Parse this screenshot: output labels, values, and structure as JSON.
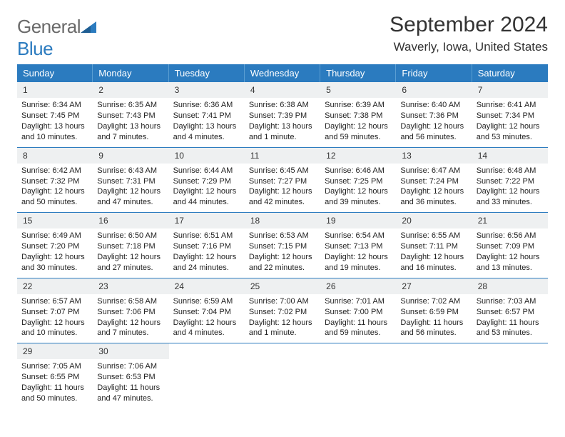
{
  "brand": {
    "name_a": "General",
    "name_b": "Blue"
  },
  "header": {
    "title": "September 2024",
    "location": "Waverly, Iowa, United States"
  },
  "colors": {
    "accent": "#2b7bbf",
    "dow_border": "#5a9ed2",
    "daynum_bg": "#eef0f1",
    "text": "#222222",
    "muted": "#6a6a6a",
    "bg": "#ffffff"
  },
  "dows": [
    "Sunday",
    "Monday",
    "Tuesday",
    "Wednesday",
    "Thursday",
    "Friday",
    "Saturday"
  ],
  "weeks": [
    [
      {
        "d": "1",
        "sr": "6:34 AM",
        "ss": "7:45 PM",
        "dl": "13 hours and 10 minutes."
      },
      {
        "d": "2",
        "sr": "6:35 AM",
        "ss": "7:43 PM",
        "dl": "13 hours and 7 minutes."
      },
      {
        "d": "3",
        "sr": "6:36 AM",
        "ss": "7:41 PM",
        "dl": "13 hours and 4 minutes."
      },
      {
        "d": "4",
        "sr": "6:38 AM",
        "ss": "7:39 PM",
        "dl": "13 hours and 1 minute."
      },
      {
        "d": "5",
        "sr": "6:39 AM",
        "ss": "7:38 PM",
        "dl": "12 hours and 59 minutes."
      },
      {
        "d": "6",
        "sr": "6:40 AM",
        "ss": "7:36 PM",
        "dl": "12 hours and 56 minutes."
      },
      {
        "d": "7",
        "sr": "6:41 AM",
        "ss": "7:34 PM",
        "dl": "12 hours and 53 minutes."
      }
    ],
    [
      {
        "d": "8",
        "sr": "6:42 AM",
        "ss": "7:32 PM",
        "dl": "12 hours and 50 minutes."
      },
      {
        "d": "9",
        "sr": "6:43 AM",
        "ss": "7:31 PM",
        "dl": "12 hours and 47 minutes."
      },
      {
        "d": "10",
        "sr": "6:44 AM",
        "ss": "7:29 PM",
        "dl": "12 hours and 44 minutes."
      },
      {
        "d": "11",
        "sr": "6:45 AM",
        "ss": "7:27 PM",
        "dl": "12 hours and 42 minutes."
      },
      {
        "d": "12",
        "sr": "6:46 AM",
        "ss": "7:25 PM",
        "dl": "12 hours and 39 minutes."
      },
      {
        "d": "13",
        "sr": "6:47 AM",
        "ss": "7:24 PM",
        "dl": "12 hours and 36 minutes."
      },
      {
        "d": "14",
        "sr": "6:48 AM",
        "ss": "7:22 PM",
        "dl": "12 hours and 33 minutes."
      }
    ],
    [
      {
        "d": "15",
        "sr": "6:49 AM",
        "ss": "7:20 PM",
        "dl": "12 hours and 30 minutes."
      },
      {
        "d": "16",
        "sr": "6:50 AM",
        "ss": "7:18 PM",
        "dl": "12 hours and 27 minutes."
      },
      {
        "d": "17",
        "sr": "6:51 AM",
        "ss": "7:16 PM",
        "dl": "12 hours and 24 minutes."
      },
      {
        "d": "18",
        "sr": "6:53 AM",
        "ss": "7:15 PM",
        "dl": "12 hours and 22 minutes."
      },
      {
        "d": "19",
        "sr": "6:54 AM",
        "ss": "7:13 PM",
        "dl": "12 hours and 19 minutes."
      },
      {
        "d": "20",
        "sr": "6:55 AM",
        "ss": "7:11 PM",
        "dl": "12 hours and 16 minutes."
      },
      {
        "d": "21",
        "sr": "6:56 AM",
        "ss": "7:09 PM",
        "dl": "12 hours and 13 minutes."
      }
    ],
    [
      {
        "d": "22",
        "sr": "6:57 AM",
        "ss": "7:07 PM",
        "dl": "12 hours and 10 minutes."
      },
      {
        "d": "23",
        "sr": "6:58 AM",
        "ss": "7:06 PM",
        "dl": "12 hours and 7 minutes."
      },
      {
        "d": "24",
        "sr": "6:59 AM",
        "ss": "7:04 PM",
        "dl": "12 hours and 4 minutes."
      },
      {
        "d": "25",
        "sr": "7:00 AM",
        "ss": "7:02 PM",
        "dl": "12 hours and 1 minute."
      },
      {
        "d": "26",
        "sr": "7:01 AM",
        "ss": "7:00 PM",
        "dl": "11 hours and 59 minutes."
      },
      {
        "d": "27",
        "sr": "7:02 AM",
        "ss": "6:59 PM",
        "dl": "11 hours and 56 minutes."
      },
      {
        "d": "28",
        "sr": "7:03 AM",
        "ss": "6:57 PM",
        "dl": "11 hours and 53 minutes."
      }
    ],
    [
      {
        "d": "29",
        "sr": "7:05 AM",
        "ss": "6:55 PM",
        "dl": "11 hours and 50 minutes."
      },
      {
        "d": "30",
        "sr": "7:06 AM",
        "ss": "6:53 PM",
        "dl": "11 hours and 47 minutes."
      },
      null,
      null,
      null,
      null,
      null
    ]
  ],
  "labels": {
    "sunrise": "Sunrise:",
    "sunset": "Sunset:",
    "daylight": "Daylight:"
  }
}
